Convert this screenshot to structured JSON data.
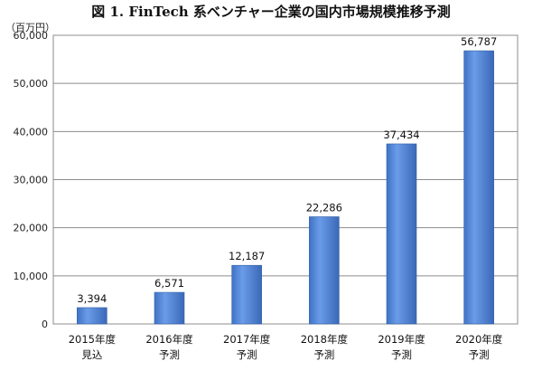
{
  "chart_data": {
    "type": "bar",
    "title": "図 1. FinTech 系ベンチャー企業の国内市場規模推移予測",
    "unit": "（百万円）",
    "categories": [
      [
        "2015年度",
        "見込"
      ],
      [
        "2016年度",
        "予測"
      ],
      [
        "2017年度",
        "予測"
      ],
      [
        "2018年度",
        "予測"
      ],
      [
        "2019年度",
        "予測"
      ],
      [
        "2020年度",
        "予測"
      ]
    ],
    "values": [
      3394,
      6571,
      12187,
      22286,
      37434,
      56787
    ],
    "value_labels": [
      "3,394",
      "6,571",
      "12,187",
      "22,286",
      "37,434",
      "56,787"
    ],
    "yticks": [
      "0",
      "10,000",
      "20,000",
      "30,000",
      "40,000",
      "50,000",
      "60,000"
    ],
    "ylim": [
      0,
      60000
    ],
    "grid": true,
    "bar_color": "#5b8fdd"
  }
}
